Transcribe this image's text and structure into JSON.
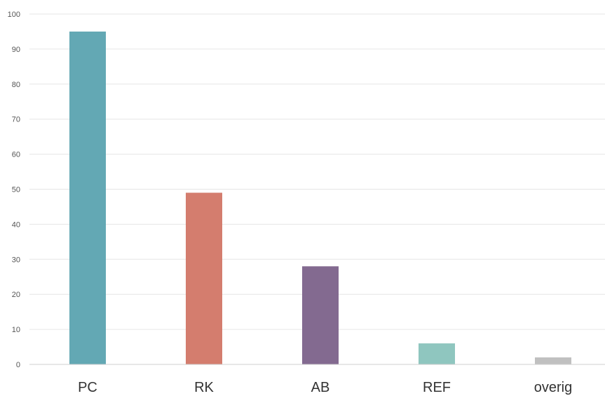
{
  "chart_data": {
    "type": "bar",
    "title": "",
    "xlabel": "",
    "ylabel": "",
    "categories": [
      "PC",
      "RK",
      "AB",
      "REF",
      "overig"
    ],
    "values": [
      95,
      49,
      28,
      6,
      2
    ],
    "colors": [
      "#63a8b4",
      "#d47d6e",
      "#836a90",
      "#8fc6bf",
      "#c0c0c0"
    ],
    "ylim": [
      0,
      100
    ],
    "yticks": [
      0,
      10,
      20,
      30,
      40,
      50,
      60,
      70,
      80,
      90,
      100
    ],
    "grid": true,
    "legend": "none"
  }
}
